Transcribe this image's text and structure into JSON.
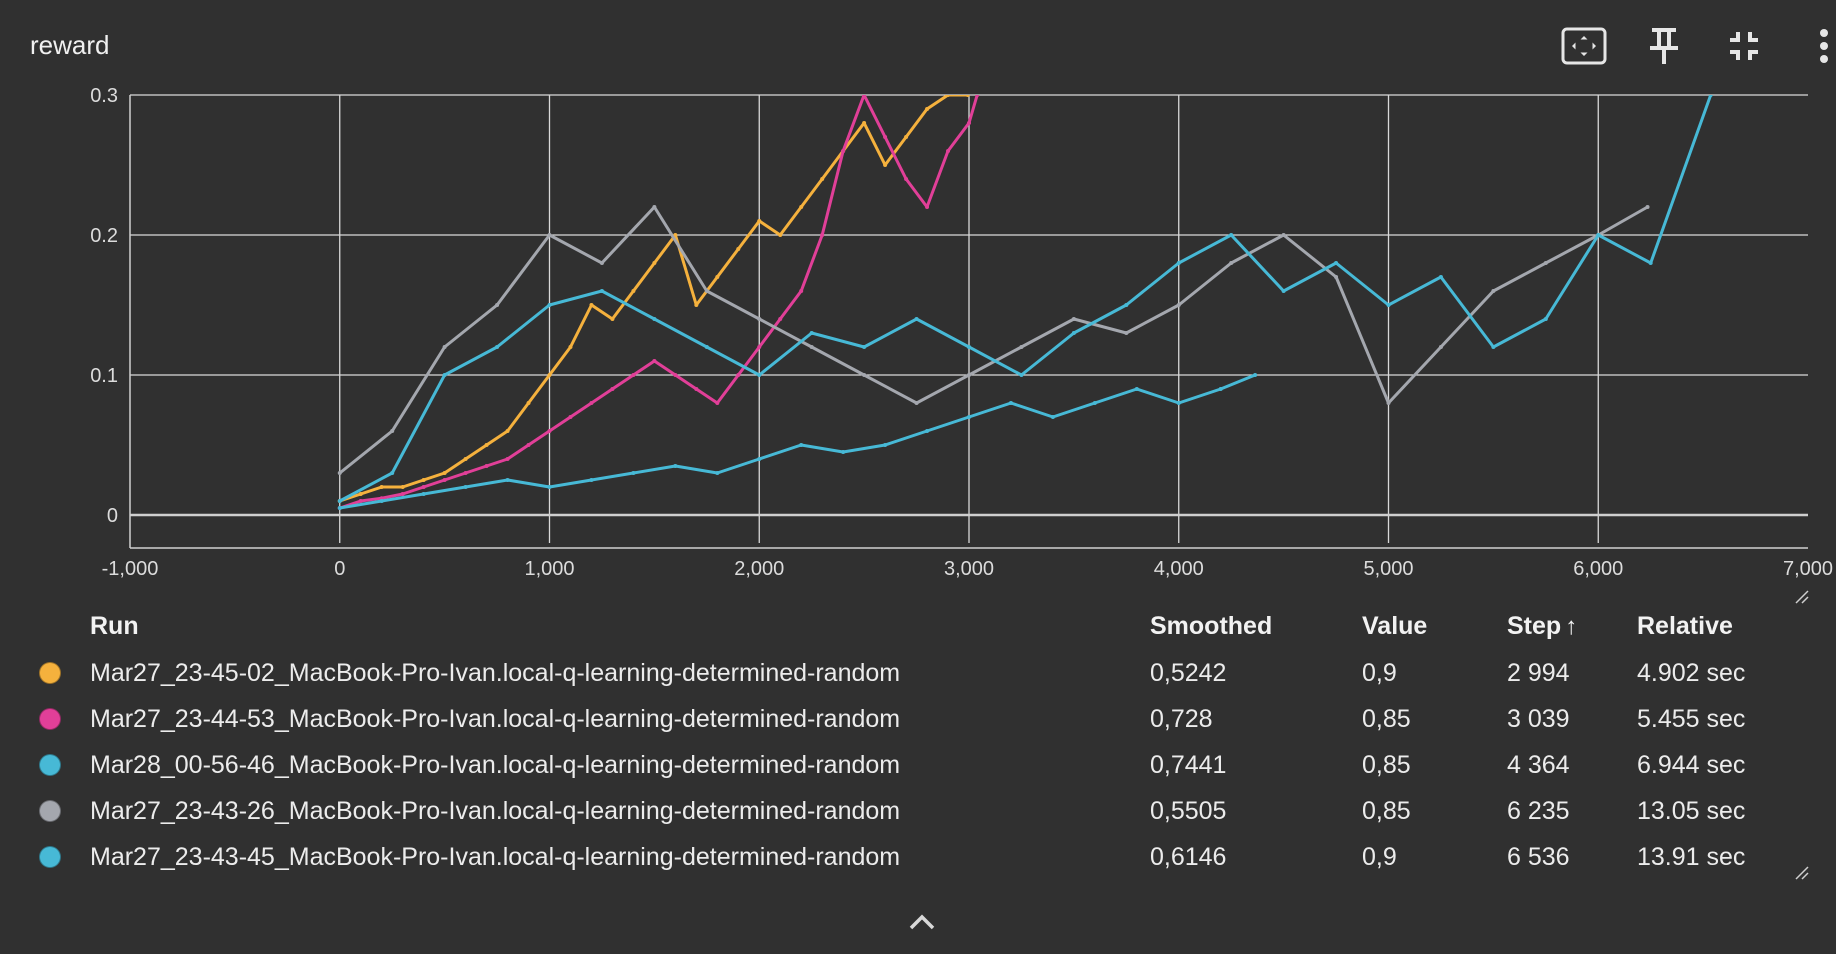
{
  "card": {
    "title": "reward"
  },
  "toolbar": {
    "icons": [
      "fit-domain-icon",
      "pin-icon",
      "collapse-icon",
      "more-vert-icon"
    ]
  },
  "chart_data": {
    "type": "line",
    "title": "",
    "xlabel": "",
    "ylabel": "",
    "xlim": [
      -1000,
      7000
    ],
    "ylim": [
      -0.02,
      0.3
    ],
    "x_ticks": [
      "-1,000",
      "0",
      "1,000",
      "2,000",
      "3,000",
      "4,000",
      "5,000",
      "6,000",
      "7,000"
    ],
    "y_ticks": [
      "0",
      "0.1",
      "0.2",
      "0.3"
    ],
    "grid": true,
    "smoothing_note_visible": false,
    "series": [
      {
        "name": "Mar27_23-45-02_MacBook-Pro-Ivan.local-q-learning-determined-random",
        "color": "#f5b13d",
        "x": [
          0,
          100,
          200,
          300,
          400,
          500,
          600,
          700,
          800,
          900,
          1000,
          1100,
          1200,
          1300,
          1400,
          1500,
          1600,
          1700,
          1800,
          1900,
          2000,
          2100,
          2200,
          2300,
          2400,
          2500,
          2600,
          2700,
          2800,
          2900,
          2994
        ],
        "y": [
          0.01,
          0.015,
          0.02,
          0.02,
          0.025,
          0.03,
          0.04,
          0.05,
          0.06,
          0.08,
          0.1,
          0.12,
          0.15,
          0.14,
          0.16,
          0.18,
          0.2,
          0.15,
          0.17,
          0.19,
          0.21,
          0.2,
          0.22,
          0.24,
          0.26,
          0.28,
          0.25,
          0.27,
          0.29,
          0.3,
          0.3
        ]
      },
      {
        "name": "Mar27_23-44-53_MacBook-Pro-Ivan.local-q-learning-determined-random",
        "color": "#e13f98",
        "x": [
          0,
          100,
          200,
          300,
          400,
          500,
          600,
          700,
          800,
          900,
          1000,
          1100,
          1200,
          1300,
          1400,
          1500,
          1600,
          1700,
          1800,
          1900,
          2000,
          2100,
          2200,
          2300,
          2400,
          2500,
          2600,
          2700,
          2800,
          2900,
          3000,
          3039
        ],
        "y": [
          0.005,
          0.01,
          0.012,
          0.015,
          0.02,
          0.025,
          0.03,
          0.035,
          0.04,
          0.05,
          0.06,
          0.07,
          0.08,
          0.09,
          0.1,
          0.11,
          0.1,
          0.09,
          0.08,
          0.1,
          0.12,
          0.14,
          0.16,
          0.2,
          0.26,
          0.3,
          0.27,
          0.24,
          0.22,
          0.26,
          0.28,
          0.3
        ]
      },
      {
        "name": "Mar28_00-56-46_MacBook-Pro-Ivan.local-q-learning-determined-random",
        "color": "#47b9d6",
        "x": [
          0,
          200,
          400,
          600,
          800,
          1000,
          1200,
          1400,
          1600,
          1800,
          2000,
          2200,
          2400,
          2600,
          2800,
          3000,
          3200,
          3400,
          3600,
          3800,
          4000,
          4200,
          4364
        ],
        "y": [
          0.005,
          0.01,
          0.015,
          0.02,
          0.025,
          0.02,
          0.025,
          0.03,
          0.035,
          0.03,
          0.04,
          0.05,
          0.045,
          0.05,
          0.06,
          0.07,
          0.08,
          0.07,
          0.08,
          0.09,
          0.08,
          0.09,
          0.1
        ]
      },
      {
        "name": "Mar27_23-43-26_MacBook-Pro-Ivan.local-q-learning-determined-random",
        "color": "#a4a7ae",
        "x": [
          0,
          250,
          500,
          750,
          1000,
          1250,
          1500,
          1750,
          2000,
          2250,
          2500,
          2750,
          3000,
          3250,
          3500,
          3750,
          4000,
          4250,
          4500,
          4750,
          5000,
          5250,
          5500,
          5750,
          6000,
          6235
        ],
        "y": [
          0.03,
          0.06,
          0.12,
          0.15,
          0.2,
          0.18,
          0.22,
          0.16,
          0.14,
          0.12,
          0.1,
          0.08,
          0.1,
          0.12,
          0.14,
          0.13,
          0.15,
          0.18,
          0.2,
          0.17,
          0.08,
          0.12,
          0.16,
          0.18,
          0.2,
          0.22
        ]
      },
      {
        "name": "Mar27_23-43-45_MacBook-Pro-Ivan.local-q-learning-determined-random",
        "color": "#47b9d6",
        "x": [
          0,
          250,
          500,
          750,
          1000,
          1250,
          1500,
          1750,
          2000,
          2250,
          2500,
          2750,
          3000,
          3250,
          3500,
          3750,
          4000,
          4250,
          4500,
          4750,
          5000,
          5250,
          5500,
          5750,
          6000,
          6250,
          6536
        ],
        "y": [
          0.01,
          0.03,
          0.1,
          0.12,
          0.15,
          0.16,
          0.14,
          0.12,
          0.1,
          0.13,
          0.12,
          0.14,
          0.12,
          0.1,
          0.13,
          0.15,
          0.18,
          0.2,
          0.16,
          0.18,
          0.15,
          0.17,
          0.12,
          0.14,
          0.2,
          0.18,
          0.3
        ]
      }
    ]
  },
  "legend": {
    "headers": {
      "run": "Run",
      "smoothed": "Smoothed",
      "value": "Value",
      "step": "Step",
      "step_sort_icon": "↑",
      "relative": "Relative"
    },
    "rows": [
      {
        "color": "#f5b13d",
        "run": "Mar27_23-45-02_MacBook-Pro-Ivan.local-q-learning-determined-random",
        "smoothed": "0,5242",
        "value": "0,9",
        "step": "2 994",
        "relative": "4.902 sec"
      },
      {
        "color": "#e13f98",
        "run": "Mar27_23-44-53_MacBook-Pro-Ivan.local-q-learning-determined-random",
        "smoothed": "0,728",
        "value": "0,85",
        "step": "3 039",
        "relative": "5.455 sec"
      },
      {
        "color": "#47b9d6",
        "run": "Mar28_00-56-46_MacBook-Pro-Ivan.local-q-learning-determined-random",
        "smoothed": "0,7441",
        "value": "0,85",
        "step": "4 364",
        "relative": "6.944 sec"
      },
      {
        "color": "#a4a7ae",
        "run": "Mar27_23-43-26_MacBook-Pro-Ivan.local-q-learning-determined-random",
        "smoothed": "0,5505",
        "value": "0,85",
        "step": "6 235",
        "relative": "13.05 sec"
      },
      {
        "color": "#47b9d6",
        "run": "Mar27_23-43-45_MacBook-Pro-Ivan.local-q-learning-determined-random",
        "smoothed": "0,6146",
        "value": "0,9",
        "step": "6 536",
        "relative": "13.91 sec"
      }
    ]
  }
}
